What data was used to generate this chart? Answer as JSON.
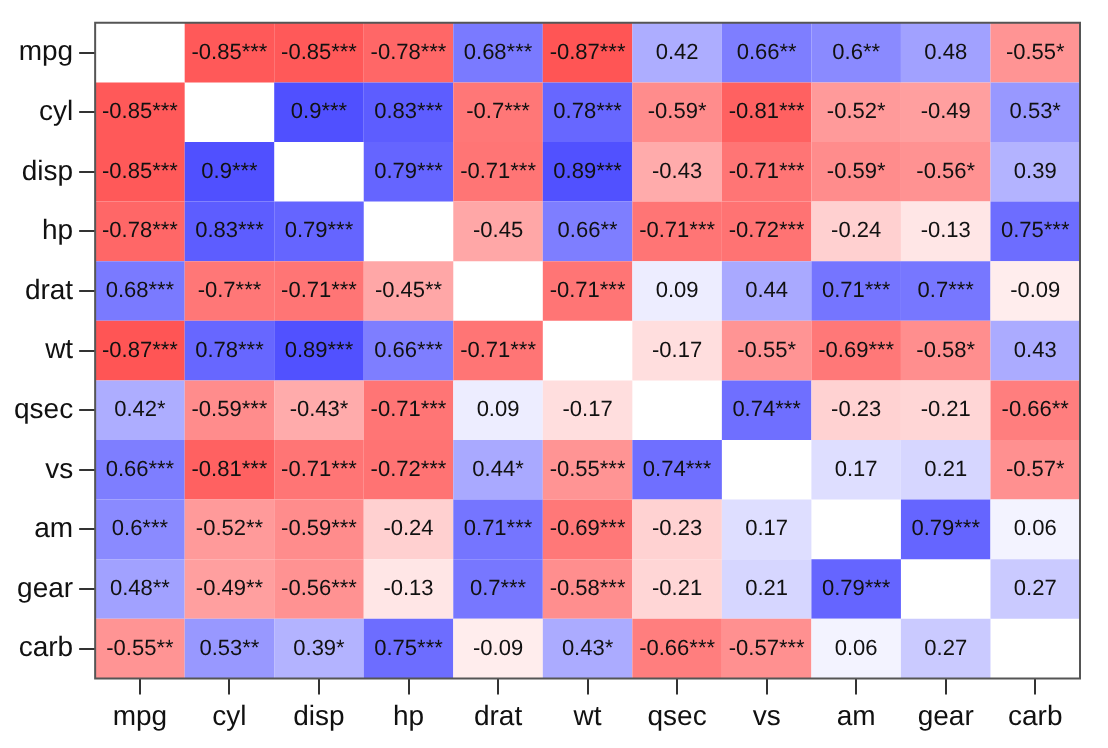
{
  "chart_data": {
    "type": "heatmap",
    "categories": [
      "mpg",
      "cyl",
      "disp",
      "hp",
      "drat",
      "wt",
      "qsec",
      "vs",
      "am",
      "gear",
      "carb"
    ],
    "y_categories": [
      "mpg",
      "cyl",
      "disp",
      "hp",
      "drat",
      "wt",
      "qsec",
      "vs",
      "am",
      "gear",
      "carb"
    ],
    "cells": [
      [
        null,
        -0.85,
        -0.85,
        -0.78,
        0.68,
        -0.87,
        0.42,
        0.66,
        0.6,
        0.48,
        -0.55
      ],
      [
        -0.85,
        null,
        0.9,
        0.83,
        -0.7,
        0.78,
        -0.59,
        -0.81,
        -0.52,
        -0.49,
        0.53
      ],
      [
        -0.85,
        0.9,
        null,
        0.79,
        -0.71,
        0.89,
        -0.43,
        -0.71,
        -0.59,
        -0.56,
        0.39
      ],
      [
        -0.78,
        0.83,
        0.79,
        null,
        -0.45,
        0.66,
        -0.71,
        -0.72,
        -0.24,
        -0.13,
        0.75
      ],
      [
        0.68,
        -0.7,
        -0.71,
        -0.45,
        null,
        -0.71,
        0.09,
        0.44,
        0.71,
        0.7,
        -0.09
      ],
      [
        -0.87,
        0.78,
        0.89,
        0.66,
        -0.71,
        null,
        -0.17,
        -0.55,
        -0.69,
        -0.58,
        0.43
      ],
      [
        0.42,
        -0.59,
        -0.43,
        -0.71,
        0.09,
        -0.17,
        null,
        0.74,
        -0.23,
        -0.21,
        -0.66
      ],
      [
        0.66,
        -0.81,
        -0.71,
        -0.72,
        0.44,
        -0.55,
        0.74,
        null,
        0.17,
        0.21,
        -0.57
      ],
      [
        0.6,
        -0.52,
        -0.59,
        -0.24,
        0.71,
        -0.69,
        -0.23,
        0.17,
        null,
        0.79,
        0.06
      ],
      [
        0.48,
        -0.49,
        -0.56,
        -0.13,
        0.7,
        -0.58,
        -0.21,
        0.21,
        0.79,
        null,
        0.27
      ],
      [
        -0.55,
        0.53,
        0.39,
        0.75,
        -0.09,
        0.43,
        -0.66,
        -0.57,
        0.06,
        0.27,
        null
      ]
    ],
    "cell_labels": [
      [
        null,
        "-0.85***",
        "-0.85***",
        "-0.78***",
        "0.68***",
        "-0.87***",
        "0.42",
        "0.66**",
        "0.6**",
        "0.48",
        "-0.55*"
      ],
      [
        "-0.85***",
        null,
        "0.9***",
        "0.83***",
        "-0.7***",
        "0.78***",
        "-0.59*",
        "-0.81***",
        "-0.52*",
        "-0.49",
        "0.53*"
      ],
      [
        "-0.85***",
        "0.9***",
        null,
        "0.79***",
        "-0.71***",
        "0.89***",
        "-0.43",
        "-0.71***",
        "-0.59*",
        "-0.56*",
        "0.39"
      ],
      [
        "-0.78***",
        "0.83***",
        "0.79***",
        null,
        "-0.45",
        "0.66**",
        "-0.71***",
        "-0.72***",
        "-0.24",
        "-0.13",
        "0.75***"
      ],
      [
        "0.68***",
        "-0.7***",
        "-0.71***",
        "-0.45**",
        null,
        "-0.71***",
        "0.09",
        "0.44",
        "0.71***",
        "0.7***",
        "-0.09"
      ],
      [
        "-0.87***",
        "0.78***",
        "0.89***",
        "0.66***",
        "-0.71***",
        null,
        "-0.17",
        "-0.55*",
        "-0.69***",
        "-0.58*",
        "0.43"
      ],
      [
        "0.42*",
        "-0.59***",
        "-0.43*",
        "-0.71***",
        "0.09",
        "-0.17",
        null,
        "0.74***",
        "-0.23",
        "-0.21",
        "-0.66**"
      ],
      [
        "0.66***",
        "-0.81***",
        "-0.71***",
        "-0.72***",
        "0.44*",
        "-0.55***",
        "0.74***",
        null,
        "0.17",
        "0.21",
        "-0.57*"
      ],
      [
        "0.6***",
        "-0.52**",
        "-0.59***",
        "-0.24",
        "0.71***",
        "-0.69***",
        "-0.23",
        "0.17",
        null,
        "0.79***",
        "0.06"
      ],
      [
        "0.48**",
        "-0.49**",
        "-0.56***",
        "-0.13",
        "0.7***",
        "-0.58***",
        "-0.21",
        "0.21",
        "0.79***",
        null,
        "0.27"
      ],
      [
        "-0.55**",
        "0.53**",
        "0.39*",
        "0.75***",
        "-0.09",
        "0.43*",
        "-0.66***",
        "-0.57***",
        "0.06",
        "0.27",
        null
      ]
    ]
  }
}
